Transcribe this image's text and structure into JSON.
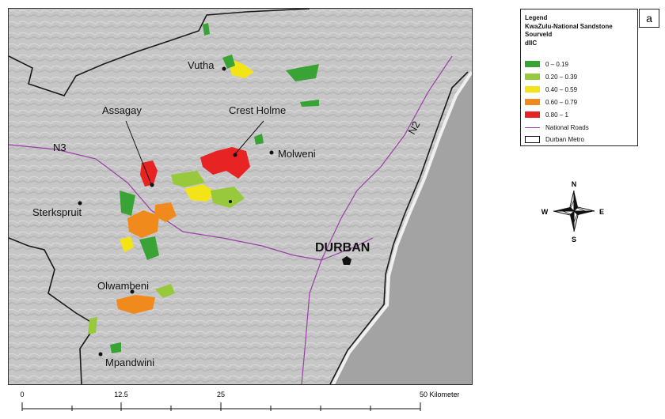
{
  "panel_label": "a",
  "legend": {
    "title_lines": [
      "Legend",
      "KwaZulu-National Sandstone",
      "Sourveld",
      "dIIC"
    ],
    "classes": [
      {
        "label": "0 – 0.19",
        "color": "#3aa336"
      },
      {
        "label": "0.20 – 0.39",
        "color": "#98c93c"
      },
      {
        "label": "0.40 – 0.59",
        "color": "#f2e416"
      },
      {
        "label": "0.60 – 0.79",
        "color": "#f08a1c"
      },
      {
        "label": "0.80 – 1",
        "color": "#e82323"
      }
    ],
    "roads_label": "National Roads",
    "roads_color": "#9b3fa8",
    "metro_label": "Durban Metro"
  },
  "places": {
    "vutha": "Vutha",
    "assagay": "Assagay",
    "crest_holme": "Crest Holme",
    "molweni": "Molweni",
    "sterkspruit": "Sterkspruit",
    "durban": "DURBAN",
    "olwambeni": "Olwambeni",
    "mpandwini": "Mpandwini"
  },
  "roads": {
    "n3": "N3",
    "n2": "N2"
  },
  "compass": {
    "n": "N",
    "s": "S",
    "e": "E",
    "w": "W"
  },
  "scale": {
    "ticks": [
      "0",
      "12.5",
      "25",
      "50 Kilometers"
    ]
  },
  "colors": {
    "terrain": "#c9c9c9",
    "ocean": "#a3a3a3",
    "boundary": "#1a1a1a"
  }
}
